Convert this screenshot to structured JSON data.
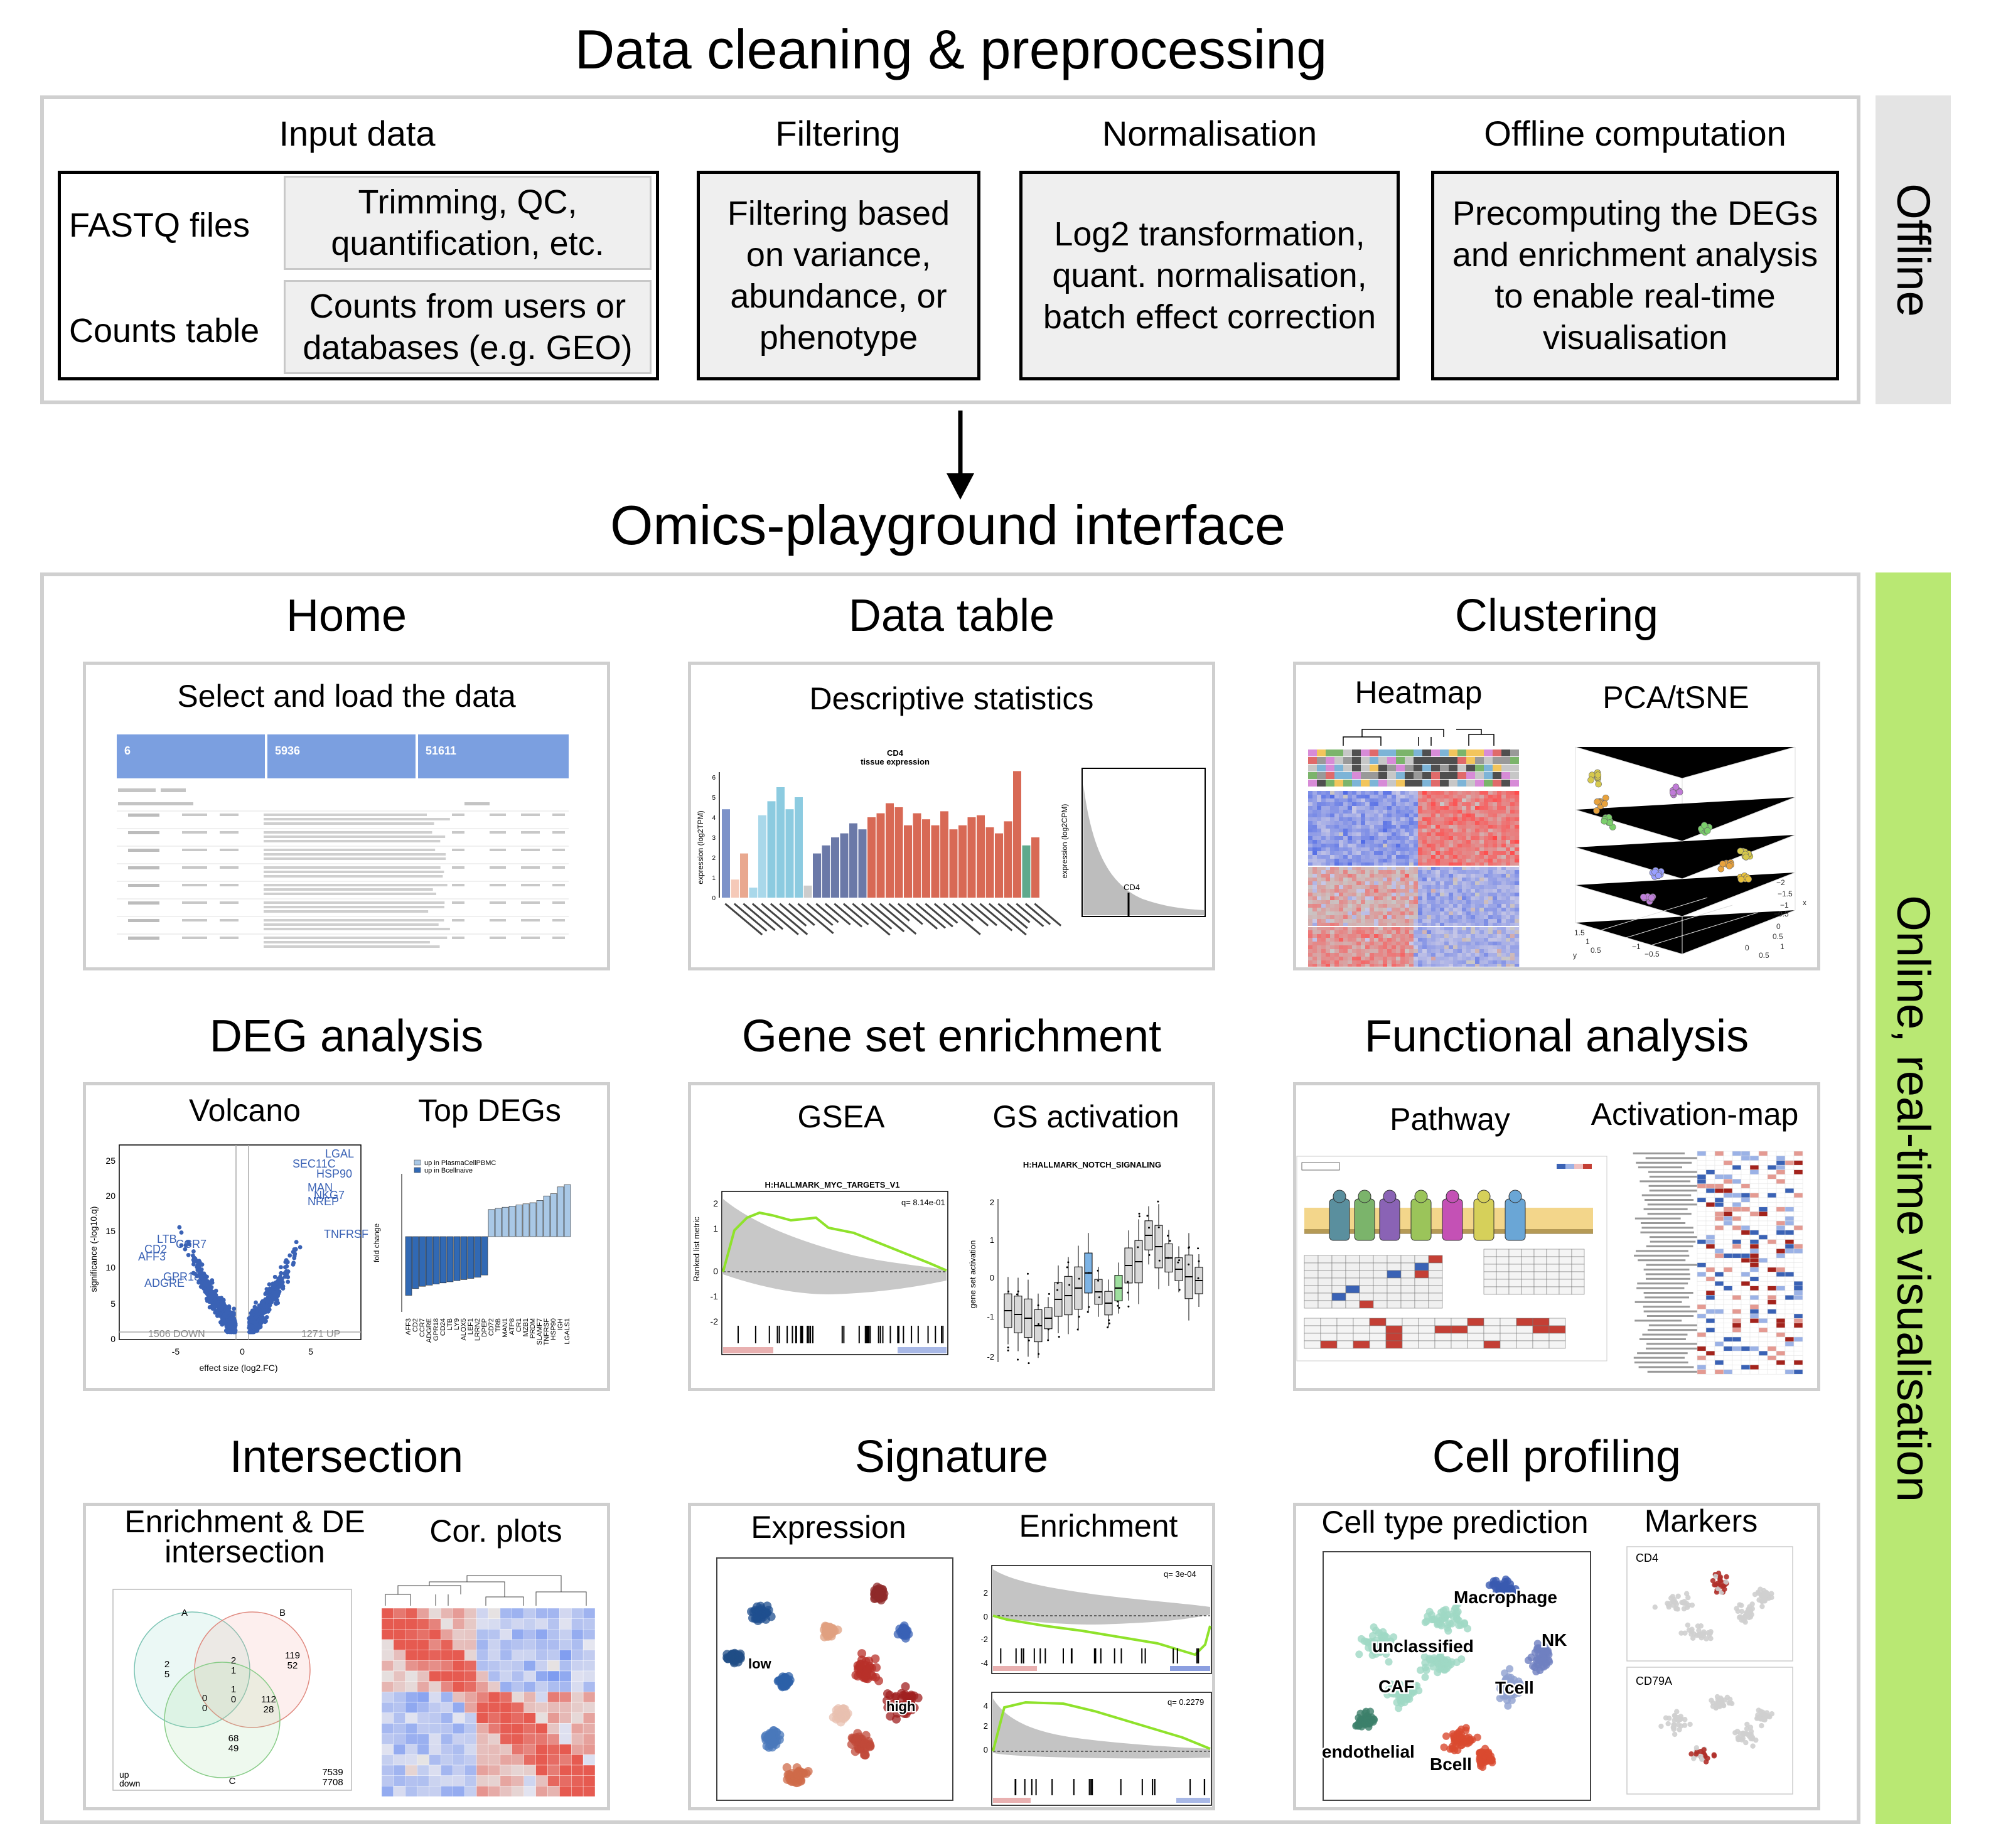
{
  "offline": {
    "title": "Data cleaning & preprocessing",
    "side_label": "Offline",
    "input_data": {
      "title": "Input data",
      "fastq_label": "FASTQ files",
      "fastq_desc": "Trimming, QC, quantification, etc.",
      "counts_label": "Counts table",
      "counts_desc": "Counts from users or databases (e.g. GEO)"
    },
    "filtering": {
      "title": "Filtering",
      "desc": "Filtering based on variance, abundance, or phenotype"
    },
    "normalisation": {
      "title": "Normalisation",
      "desc": "Log2 transformation, quant. normalisation, batch effect correction"
    },
    "offline_computation": {
      "title": "Offline computation",
      "desc": "Precomputing the DEGs and enrichment analysis to enable real-time visualisation"
    }
  },
  "online": {
    "title": "Omics-playground interface",
    "side_label": "Online, real-time visualisation",
    "modules": {
      "home": {
        "title": "Home",
        "subtitle": "Select and load the data",
        "stats": [
          "6",
          "5936",
          "51611"
        ]
      },
      "data_table": {
        "title": "Data table",
        "subtitle": "Descriptive statistics",
        "chart_title": "CD4",
        "chart_subtitle": "tissue expression",
        "ylabel": "expression (log2TPM)",
        "ylabel2": "expression (log2CPM)",
        "gene_label": "CD4"
      },
      "clustering": {
        "title": "Clustering",
        "sub1": "Heatmap",
        "sub2": "PCA/tSNE"
      },
      "deg": {
        "title": "DEG analysis",
        "sub1": "Volcano",
        "sub2": "Top DEGs",
        "xlabel": "effect size (log2.FC)",
        "ylabel": "significance (-log10.q)",
        "down_label": "1506 DOWN",
        "up_label": "1271 UP",
        "legend_up": "up in PlasmaCellPBMC",
        "legend_down": "up in Bcellnaive",
        "ylabel2": "fold change"
      },
      "gse": {
        "title": "Gene set enrichment",
        "sub1": "GSEA",
        "sub2": "GS activation",
        "gsea_title": "H:HALLMARK_MYC_TARGETS_V1",
        "gsea_q": "q= 8.14e-01",
        "gsea_ylabel": "Ranked list metric",
        "act_title": "H:HALLMARK_NOTCH_SIGNALING",
        "act_ylabel": "gene set activation"
      },
      "functional": {
        "title": "Functional analysis",
        "sub1": "Pathway",
        "sub2": "Activation-map"
      },
      "intersection": {
        "title": "Intersection",
        "sub1": "Enrichment & DE intersection",
        "sub2": "Cor. plots",
        "venn_a": "A",
        "venn_b": "B",
        "venn_c": "C",
        "up": "up",
        "down": "down",
        "a_only": "2\n5",
        "ab": "2\n1",
        "b_only": "119\n52",
        "abc": "1\n0",
        "ac": "0\n0",
        "bc": "112\n28",
        "c_only": "68\n49",
        "total": "7539\n7708"
      },
      "signature": {
        "title": "Signature",
        "sub1": "Expression",
        "sub2": "Enrichment",
        "low": "low",
        "high": "high",
        "q1": "q= 3e-04",
        "q2": "q= 0.2279"
      },
      "cell_profiling": {
        "title": "Cell profiling",
        "sub1": "Cell type prediction",
        "sub2": "Markers",
        "labels": [
          "Macrophage",
          "unclassified",
          "NK",
          "CAF",
          "Tcell",
          "endothelial",
          "Bcell"
        ],
        "marker1": "CD4",
        "marker2": "CD79A"
      }
    }
  },
  "colors": {
    "online_side": "#b9e873",
    "offline_side": "#e4e4e4",
    "blue": "#3a62b5",
    "red": "#c43f35",
    "green": "#8fe22b"
  }
}
